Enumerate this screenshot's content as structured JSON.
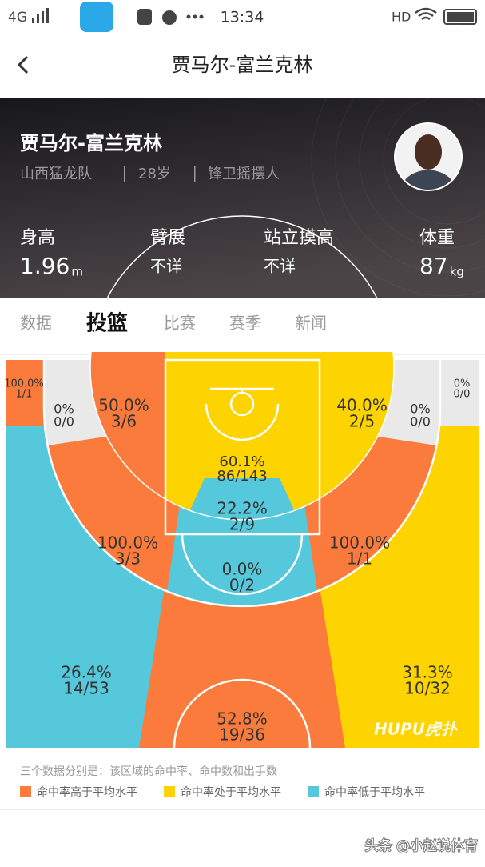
{
  "status_bar": {
    "carrier": "4G",
    "time": "13:34",
    "network": "HD"
  },
  "nav": {
    "title": "贾马尔-富兰克林"
  },
  "profile": {
    "name": "贾马尔-富兰克林",
    "team": "山西猛龙队",
    "age": "28岁",
    "position": "锋卫摇摆人",
    "stats": [
      {
        "label": "身高",
        "value": "1.96",
        "unit": "m"
      },
      {
        "label": "臂展",
        "value": "不详"
      },
      {
        "label": "站立摸高",
        "value": "不详"
      },
      {
        "label": "体重",
        "value": "87",
        "unit": "kg"
      }
    ]
  },
  "tabs": {
    "items": [
      "数据",
      "投篮",
      "比赛",
      "赛季",
      "新闻"
    ],
    "active": 1
  },
  "shot_chart": {
    "watermark": "HUPU虎扑",
    "zones": [
      {
        "pct": "100.0%",
        "made_attempts": "1/1",
        "color": "#fa7b3c"
      },
      {
        "pct": "0%",
        "made_attempts": "0/0",
        "color": "#e9e9e9"
      },
      {
        "pct": "0%",
        "made_attempts": "0/0",
        "color": "#e9e9e9"
      },
      {
        "pct": "0%",
        "made_attempts": "0/0",
        "color": "#e9e9e9"
      },
      {
        "pct": "50.0%",
        "made_attempts": "3/6",
        "color": "#fa7b3c"
      },
      {
        "pct": "40.0%",
        "made_attempts": "2/5",
        "color": "#fdd300"
      },
      {
        "pct": "60.1%",
        "made_attempts": "86/143",
        "color": "#fdd300"
      },
      {
        "pct": "22.2%",
        "made_attempts": "2/9",
        "color": "#56c8dc"
      },
      {
        "pct": "100.0%",
        "made_attempts": "3/3",
        "color": "#fa7b3c"
      },
      {
        "pct": "100.0%",
        "made_attempts": "1/1",
        "color": "#fa7b3c"
      },
      {
        "pct": "0.0%",
        "made_attempts": "0/2",
        "color": "#56c8dc"
      },
      {
        "pct": "26.4%",
        "made_attempts": "14/53",
        "color": "#56c8dc"
      },
      {
        "pct": "31.3%",
        "made_attempts": "10/32",
        "color": "#fdd300"
      },
      {
        "pct": "52.8%",
        "made_attempts": "19/36",
        "color": "#fa7b3c"
      }
    ]
  },
  "legend": {
    "note": "三个数据分别是：该区域的命中率、命中数和出手数",
    "items": [
      {
        "label": "命中率高于平均水平",
        "color": "#fa7b3c"
      },
      {
        "label": "命中率处于平均水平",
        "color": "#fdd300"
      },
      {
        "label": "命中率低于平均水平",
        "color": "#56c8dc"
      }
    ]
  },
  "footer": {
    "watermark": "头条 @小赵说体育"
  }
}
